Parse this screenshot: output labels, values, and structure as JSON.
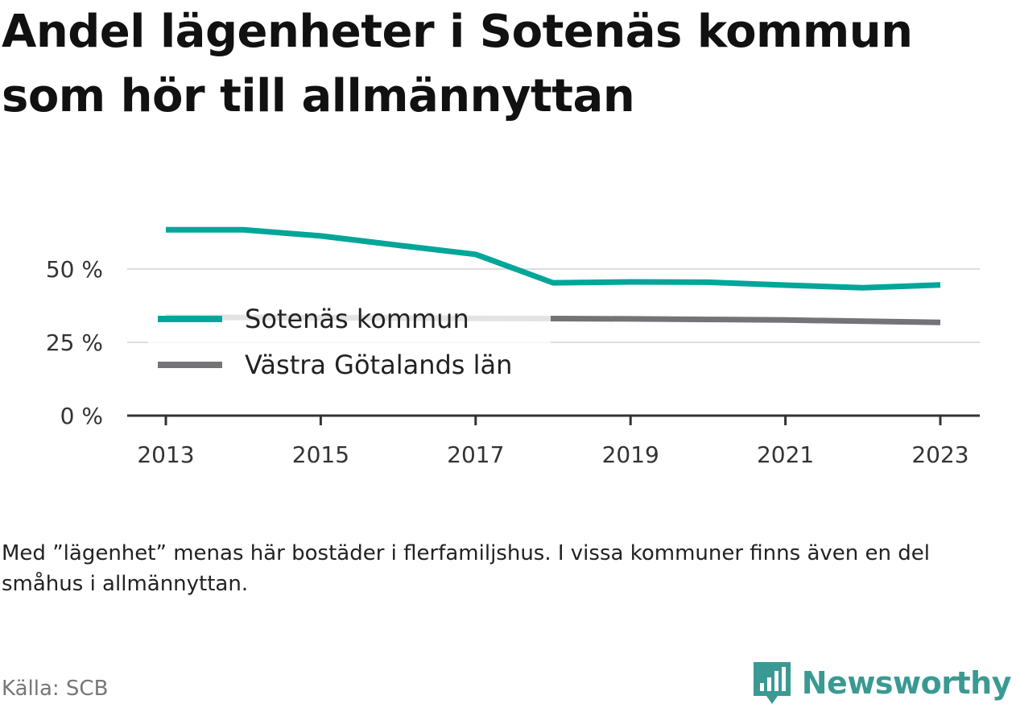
{
  "title": "Andel lägenheter i Sotenäs kommun som hör till allmännyttan",
  "note": "Med ”lägenhet” menas här bostäder i flerfamiljshus. I vissa kommuner finns även en del småhus i allmännyttan.",
  "source": "Källa: SCB",
  "brand": {
    "name": "Newsworthy",
    "icon": "newsworthy-logo-icon",
    "color": "#3a9a93"
  },
  "chart_data": {
    "type": "line",
    "x": [
      2013,
      2014,
      2015,
      2016,
      2017,
      2018,
      2019,
      2020,
      2021,
      2022,
      2023
    ],
    "x_ticks": [
      "2013",
      "2015",
      "2017",
      "2019",
      "2021",
      "2023"
    ],
    "y_ticks": [
      {
        "value": 0,
        "label": "0 %"
      },
      {
        "value": 25,
        "label": "25 %"
      },
      {
        "value": 50,
        "label": "50 %"
      }
    ],
    "ylim": [
      0,
      64
    ],
    "grid": true,
    "legend_position": "center-left",
    "series": [
      {
        "name": "Sotenäs kommun",
        "color": "#00a699",
        "values": [
          63.4,
          63.4,
          61.3,
          58.1,
          55.0,
          45.3,
          45.6,
          45.5,
          44.5,
          43.6,
          44.6
        ]
      },
      {
        "name": "Västra Götalands län",
        "color": "#737378",
        "values": [
          33.6,
          33.5,
          33.4,
          33.3,
          33.2,
          33.1,
          33.0,
          32.8,
          32.6,
          32.2,
          31.8
        ]
      }
    ]
  }
}
